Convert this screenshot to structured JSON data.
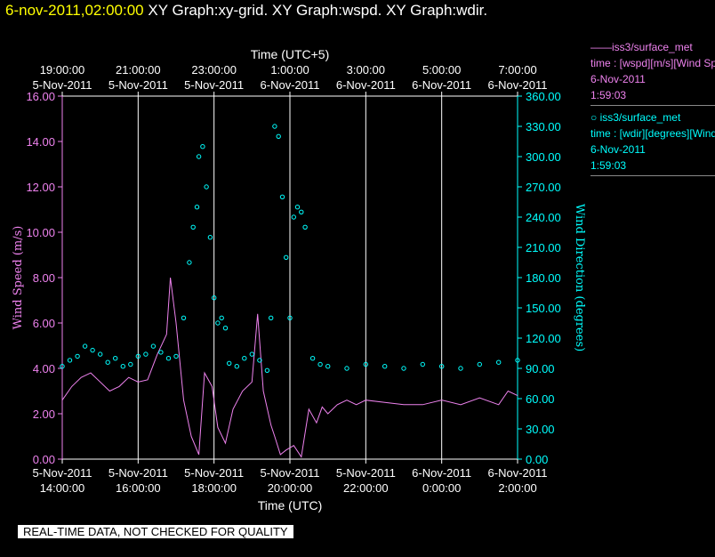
{
  "header": {
    "timestamp": "6-nov-2011,02:00:00",
    "graphs": "XY Graph:xy-grid.  XY Graph:wspd.  XY Graph:wdir."
  },
  "chart_data": {
    "type": "line+scatter",
    "top_axis_title": "Time (UTC+5)",
    "bottom_axis_title": "Time (UTC)",
    "top_ticks": [
      {
        "date": "5-Nov-2011",
        "time": "19:00:00"
      },
      {
        "date": "5-Nov-2011",
        "time": "21:00:00"
      },
      {
        "date": "5-Nov-2011",
        "time": "23:00:00"
      },
      {
        "date": "6-Nov-2011",
        "time": "1:00:00"
      },
      {
        "date": "6-Nov-2011",
        "time": "3:00:00"
      },
      {
        "date": "6-Nov-2011",
        "time": "5:00:00"
      },
      {
        "date": "6-Nov-2011",
        "time": "7:00:00"
      }
    ],
    "bottom_ticks": [
      {
        "date": "5-Nov-2011",
        "time": "14:00:00"
      },
      {
        "date": "5-Nov-2011",
        "time": "16:00:00"
      },
      {
        "date": "5-Nov-2011",
        "time": "18:00:00"
      },
      {
        "date": "5-Nov-2011",
        "time": "20:00:00"
      },
      {
        "date": "5-Nov-2011",
        "time": "22:00:00"
      },
      {
        "date": "6-Nov-2011",
        "time": "0:00:00"
      },
      {
        "date": "6-Nov-2011",
        "time": "2:00:00"
      }
    ],
    "x_range_utc_hours": [
      14,
      26
    ],
    "left_axis": {
      "label": "Wind Speed (m/s)",
      "range": [
        0,
        16
      ],
      "ticks": [
        "0.00",
        "2.00",
        "4.00",
        "6.00",
        "8.00",
        "10.00",
        "12.00",
        "14.00",
        "16.00"
      ],
      "color": "#ee82ee"
    },
    "right_axis": {
      "label": "Wind Direction (degrees)",
      "range": [
        0,
        360
      ],
      "ticks": [
        "0.00",
        "30.00",
        "60.00",
        "90.00",
        "120.00",
        "150.00",
        "180.00",
        "210.00",
        "240.00",
        "270.00",
        "300.00",
        "330.00",
        "360.00"
      ],
      "color": "#00ffff"
    },
    "vertical_grid": true,
    "series": [
      {
        "type": "line",
        "axis": "left",
        "color": "#ee82ee",
        "points": [
          [
            14.0,
            2.6
          ],
          [
            14.25,
            3.2
          ],
          [
            14.5,
            3.6
          ],
          [
            14.75,
            3.8
          ],
          [
            15.0,
            3.4
          ],
          [
            15.25,
            3.0
          ],
          [
            15.5,
            3.2
          ],
          [
            15.75,
            3.6
          ],
          [
            16.0,
            3.4
          ],
          [
            16.25,
            3.5
          ],
          [
            16.5,
            4.6
          ],
          [
            16.75,
            5.5
          ],
          [
            16.85,
            8.0
          ],
          [
            17.0,
            6.0
          ],
          [
            17.2,
            2.6
          ],
          [
            17.4,
            1.0
          ],
          [
            17.6,
            0.2
          ],
          [
            17.75,
            3.8
          ],
          [
            17.95,
            3.2
          ],
          [
            18.1,
            1.4
          ],
          [
            18.3,
            0.7
          ],
          [
            18.5,
            2.2
          ],
          [
            18.75,
            3.0
          ],
          [
            19.0,
            3.4
          ],
          [
            19.15,
            6.4
          ],
          [
            19.3,
            3.0
          ],
          [
            19.5,
            1.5
          ],
          [
            19.6,
            1.0
          ],
          [
            19.75,
            0.2
          ],
          [
            19.9,
            0.4
          ],
          [
            20.1,
            0.6
          ],
          [
            20.3,
            0.1
          ],
          [
            20.5,
            2.2
          ],
          [
            20.7,
            1.6
          ],
          [
            20.85,
            2.3
          ],
          [
            21.0,
            2.0
          ],
          [
            21.25,
            2.4
          ],
          [
            21.5,
            2.6
          ],
          [
            21.75,
            2.4
          ],
          [
            22.0,
            2.6
          ],
          [
            22.5,
            2.5
          ],
          [
            23.0,
            2.4
          ],
          [
            23.5,
            2.4
          ],
          [
            24.0,
            2.6
          ],
          [
            24.5,
            2.4
          ],
          [
            25.0,
            2.7
          ],
          [
            25.5,
            2.4
          ],
          [
            25.75,
            3.0
          ],
          [
            26.0,
            2.8
          ]
        ]
      },
      {
        "type": "scatter",
        "axis": "right",
        "color": "#00ffff",
        "points": [
          [
            14.0,
            92
          ],
          [
            14.2,
            98
          ],
          [
            14.4,
            102
          ],
          [
            14.6,
            112
          ],
          [
            14.8,
            108
          ],
          [
            15.0,
            104
          ],
          [
            15.2,
            96
          ],
          [
            15.4,
            100
          ],
          [
            15.6,
            92
          ],
          [
            15.8,
            94
          ],
          [
            16.0,
            102
          ],
          [
            16.2,
            104
          ],
          [
            16.4,
            112
          ],
          [
            16.6,
            106
          ],
          [
            16.8,
            100
          ],
          [
            17.0,
            102
          ],
          [
            17.2,
            140
          ],
          [
            17.35,
            195
          ],
          [
            17.45,
            230
          ],
          [
            17.55,
            250
          ],
          [
            17.6,
            300
          ],
          [
            17.7,
            310
          ],
          [
            17.8,
            270
          ],
          [
            17.9,
            220
          ],
          [
            18.0,
            160
          ],
          [
            18.1,
            135
          ],
          [
            18.2,
            140
          ],
          [
            18.3,
            130
          ],
          [
            18.4,
            95
          ],
          [
            18.6,
            92
          ],
          [
            18.8,
            100
          ],
          [
            19.0,
            104
          ],
          [
            19.2,
            98
          ],
          [
            19.4,
            88
          ],
          [
            19.5,
            140
          ],
          [
            19.6,
            330
          ],
          [
            19.7,
            320
          ],
          [
            19.8,
            260
          ],
          [
            19.9,
            200
          ],
          [
            20.0,
            140
          ],
          [
            20.1,
            240
          ],
          [
            20.2,
            250
          ],
          [
            20.3,
            245
          ],
          [
            20.4,
            230
          ],
          [
            20.6,
            100
          ],
          [
            20.8,
            94
          ],
          [
            21.0,
            92
          ],
          [
            21.5,
            90
          ],
          [
            22.0,
            94
          ],
          [
            22.5,
            92
          ],
          [
            23.0,
            90
          ],
          [
            23.5,
            94
          ],
          [
            24.0,
            92
          ],
          [
            24.5,
            90
          ],
          [
            25.0,
            94
          ],
          [
            25.5,
            96
          ],
          [
            26.0,
            98
          ]
        ]
      }
    ]
  },
  "legend": {
    "entries": [
      {
        "line1": "——iss3/surface_met",
        "line2": "time : [wspd][m/s][Wind Speed]",
        "line3": "6-Nov-2011",
        "line4": "1:59:03"
      },
      {
        "line1": "○ iss3/surface_met",
        "line2": "time : [wdir][degrees][Wind Direction]",
        "line3": "6-Nov-2011",
        "line4": "1:59:03"
      }
    ]
  },
  "footer": {
    "banner": "REAL-TIME DATA, NOT CHECKED FOR QUALITY"
  }
}
